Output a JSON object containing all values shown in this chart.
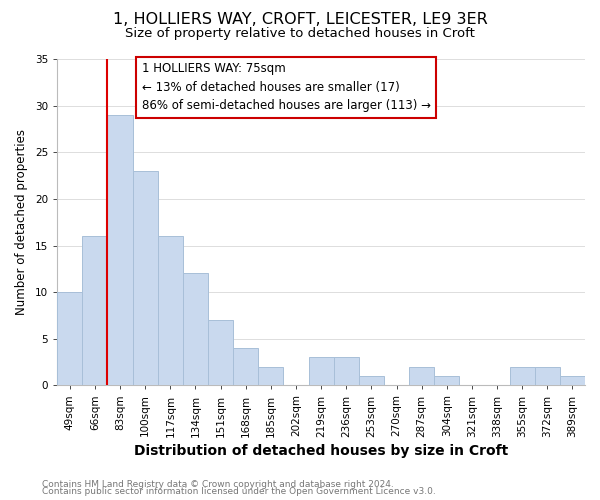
{
  "title": "1, HOLLIERS WAY, CROFT, LEICESTER, LE9 3ER",
  "subtitle": "Size of property relative to detached houses in Croft",
  "xlabel": "Distribution of detached houses by size in Croft",
  "ylabel": "Number of detached properties",
  "bar_labels": [
    "49sqm",
    "66sqm",
    "83sqm",
    "100sqm",
    "117sqm",
    "134sqm",
    "151sqm",
    "168sqm",
    "185sqm",
    "202sqm",
    "219sqm",
    "236sqm",
    "253sqm",
    "270sqm",
    "287sqm",
    "304sqm",
    "321sqm",
    "338sqm",
    "355sqm",
    "372sqm",
    "389sqm"
  ],
  "bar_values": [
    10,
    16,
    29,
    23,
    16,
    12,
    7,
    4,
    2,
    0,
    3,
    3,
    1,
    0,
    2,
    1,
    0,
    0,
    2,
    2,
    1
  ],
  "bar_color": "#c9d9ee",
  "bar_edge_color": "#a8bfd8",
  "vline_color": "#dd0000",
  "vline_x": 1.5,
  "ylim": [
    0,
    35
  ],
  "yticks": [
    0,
    5,
    10,
    15,
    20,
    25,
    30,
    35
  ],
  "annotation_title": "1 HOLLIERS WAY: 75sqm",
  "annotation_line1": "← 13% of detached houses are smaller (17)",
  "annotation_line2": "86% of semi-detached houses are larger (113) →",
  "footer1": "Contains HM Land Registry data © Crown copyright and database right 2024.",
  "footer2": "Contains public sector information licensed under the Open Government Licence v3.0.",
  "background_color": "#ffffff",
  "title_fontsize": 11.5,
  "subtitle_fontsize": 9.5,
  "xlabel_fontsize": 10,
  "ylabel_fontsize": 8.5,
  "tick_fontsize": 7.5,
  "annotation_fontsize": 8.5,
  "footer_fontsize": 6.5
}
